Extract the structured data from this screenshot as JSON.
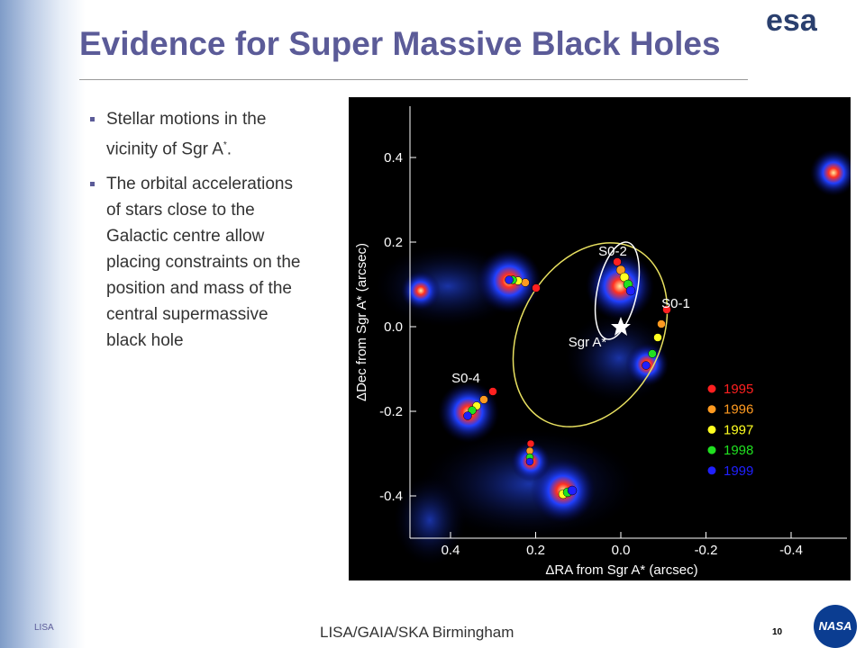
{
  "header": {
    "title": "Evidence for Super Massive Black Holes",
    "logo": "esa"
  },
  "bullets": [
    {
      "text": "Stellar motions in the vicinity of Sgr A",
      "sup": "*",
      "tail": "."
    },
    {
      "text": "The orbital accelerations of stars close to the Galactic centre allow placing constraints on the position and mass of the central supermassive black hole"
    }
  ],
  "figure": {
    "y_axis_label": "ΔDec from Sgr A* (arcsec)",
    "x_axis_label": "ΔRA from Sgr A* (arcsec)",
    "y_ticks": [
      "0.4",
      "0.2",
      "0.0",
      "-0.2",
      "-0.4"
    ],
    "x_ticks": [
      "0.4",
      "0.2",
      "0.0",
      "-0.2",
      "-0.4"
    ],
    "labels": [
      "S0-2",
      "S0-1",
      "S0-4",
      "Sgr A*"
    ],
    "legend": [
      {
        "name": "1995",
        "color": "#ff2020"
      },
      {
        "name": "1996",
        "color": "#ff9a20"
      },
      {
        "name": "1997",
        "color": "#ffff20"
      },
      {
        "name": "1998",
        "color": "#20e020"
      },
      {
        "name": "1999",
        "color": "#2020ff"
      }
    ]
  },
  "footer": {
    "left": "LISA",
    "center": "LISA/GAIA/SKA Birmingham",
    "page": "10",
    "logo": "NASA"
  }
}
